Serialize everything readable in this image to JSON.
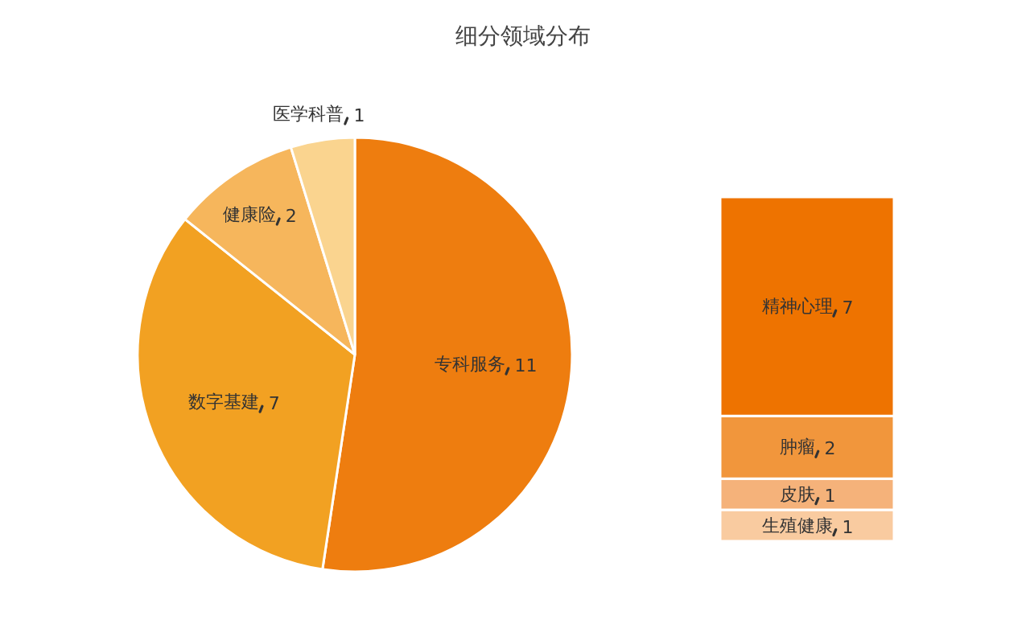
{
  "chart_data": [
    {
      "type": "pie",
      "title": "细分领域分布",
      "categories": [
        "专科服务",
        "数字基建",
        "健康险",
        "医学科普"
      ],
      "values": [
        11,
        7,
        2,
        1
      ],
      "colors": [
        "#ee7d0f",
        "#f2a122",
        "#f6b65c",
        "#fad48f"
      ],
      "data_labels": true
    },
    {
      "type": "bar",
      "stacked": true,
      "categories": [
        null
      ],
      "data_labels": true,
      "series": [
        {
          "name": "生殖健康",
          "color": "#f9cba0",
          "values": [
            1
          ]
        },
        {
          "name": "皮肤",
          "color": "#f5b27a",
          "values": [
            1
          ]
        },
        {
          "name": "肿瘤",
          "color": "#f1963c",
          "values": [
            2
          ]
        },
        {
          "name": "精神心理",
          "color": "#ee7300",
          "values": [
            7
          ]
        }
      ]
    }
  ]
}
